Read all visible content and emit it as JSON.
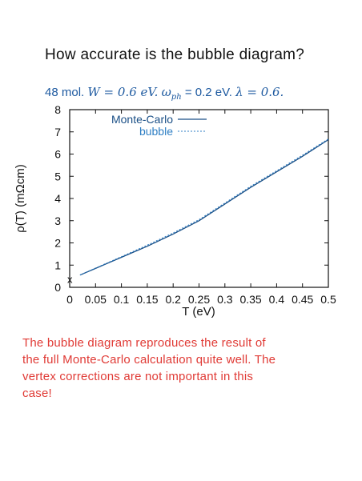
{
  "slide": {
    "title": "How accurate is the bubble diagram?",
    "params": {
      "molecules": "48 mol.",
      "W": "W = 0.6 eV.",
      "wph": "= 0.2 eV.",
      "lambda": "λ = 0.6."
    },
    "caption_lines": [
      "The bubble diagram reproduces the result of",
      "the full Monte-Carlo calculation quite well.  The",
      "vertex corrections are not important in this",
      "case!"
    ]
  },
  "colors": {
    "text": "#111111",
    "params": "#1e5aa0",
    "caption": "#e03a35",
    "monte_carlo": "#1a4f86",
    "bubble": "#2f7fc4"
  },
  "chart_data": {
    "type": "line",
    "xlabel": "T (eV)",
    "ylabel": "ρ(T) (mΩcm)",
    "xlim": [
      0,
      0.5
    ],
    "ylim": [
      0,
      8
    ],
    "xticks": [
      "0",
      "0.05",
      "0.1",
      "0.15",
      "0.2",
      "0.25",
      "0.3",
      "0.35",
      "0.4",
      "0.45",
      "0.5"
    ],
    "yticks": [
      "0",
      "1",
      "2",
      "3",
      "4",
      "5",
      "6",
      "7",
      "8"
    ],
    "grid": false,
    "legend_position": "top-right",
    "series": [
      {
        "name": "Monte-Carlo",
        "style": "solid",
        "x": [
          0.02,
          0.05,
          0.1,
          0.15,
          0.2,
          0.25,
          0.3,
          0.35,
          0.4,
          0.45,
          0.5
        ],
        "y": [
          0.55,
          0.85,
          1.35,
          1.85,
          2.4,
          3.0,
          3.75,
          4.5,
          5.2,
          5.9,
          6.65
        ]
      },
      {
        "name": "bubble",
        "style": "dotted",
        "x": [
          0.02,
          0.05,
          0.1,
          0.15,
          0.2,
          0.25,
          0.3,
          0.35,
          0.4,
          0.45,
          0.5
        ],
        "y": [
          0.56,
          0.87,
          1.38,
          1.9,
          2.45,
          3.05,
          3.8,
          4.55,
          5.25,
          5.95,
          6.68
        ]
      }
    ],
    "annotations": [
      {
        "text": "x",
        "x": 0,
        "y": 0.3
      }
    ]
  }
}
